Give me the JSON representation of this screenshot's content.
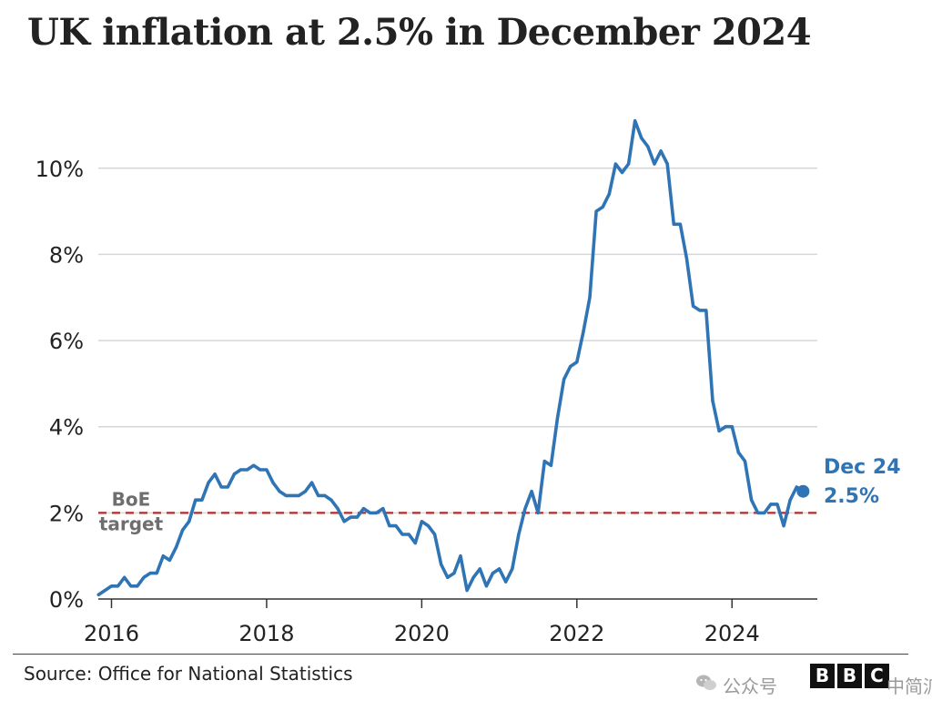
{
  "chart_data": {
    "type": "line",
    "title": "UK inflation at 2.5% in December 2024",
    "xlabel": "",
    "ylabel": "",
    "ylim": [
      0,
      11.2
    ],
    "xlim": [
      2015.83,
      2025.1
    ],
    "yticks": [
      {
        "value": 0,
        "label": "0%"
      },
      {
        "value": 2,
        "label": "2%"
      },
      {
        "value": 4,
        "label": "4%"
      },
      {
        "value": 6,
        "label": "6%"
      },
      {
        "value": 8,
        "label": "8%"
      },
      {
        "value": 10,
        "label": "10%"
      }
    ],
    "xticks": [
      {
        "value": 2016,
        "label": "2016"
      },
      {
        "value": 2018,
        "label": "2018"
      },
      {
        "value": 2020,
        "label": "2020"
      },
      {
        "value": 2022,
        "label": "2022"
      },
      {
        "value": 2024,
        "label": "2024"
      }
    ],
    "grid": true,
    "series": [
      {
        "color": "#2f74b5",
        "x": [
          "2015-11",
          "2015-12",
          "2016-01",
          "2016-02",
          "2016-03",
          "2016-04",
          "2016-05",
          "2016-06",
          "2016-07",
          "2016-08",
          "2016-09",
          "2016-10",
          "2016-11",
          "2016-12",
          "2017-01",
          "2017-02",
          "2017-03",
          "2017-04",
          "2017-05",
          "2017-06",
          "2017-07",
          "2017-08",
          "2017-09",
          "2017-10",
          "2017-11",
          "2017-12",
          "2018-01",
          "2018-02",
          "2018-03",
          "2018-04",
          "2018-05",
          "2018-06",
          "2018-07",
          "2018-08",
          "2018-09",
          "2018-10",
          "2018-11",
          "2018-12",
          "2019-01",
          "2019-02",
          "2019-03",
          "2019-04",
          "2019-05",
          "2019-06",
          "2019-07",
          "2019-08",
          "2019-09",
          "2019-10",
          "2019-11",
          "2019-12",
          "2020-01",
          "2020-02",
          "2020-03",
          "2020-04",
          "2020-05",
          "2020-06",
          "2020-07",
          "2020-08",
          "2020-09",
          "2020-10",
          "2020-11",
          "2020-12",
          "2021-01",
          "2021-02",
          "2021-03",
          "2021-04",
          "2021-05",
          "2021-06",
          "2021-07",
          "2021-08",
          "2021-09",
          "2021-10",
          "2021-11",
          "2021-12",
          "2022-01",
          "2022-02",
          "2022-03",
          "2022-04",
          "2022-05",
          "2022-06",
          "2022-07",
          "2022-08",
          "2022-09",
          "2022-10",
          "2022-11",
          "2022-12",
          "2023-01",
          "2023-02",
          "2023-03",
          "2023-04",
          "2023-05",
          "2023-06",
          "2023-07",
          "2023-08",
          "2023-09",
          "2023-10",
          "2023-11",
          "2023-12",
          "2024-01",
          "2024-02",
          "2024-03",
          "2024-04",
          "2024-05",
          "2024-06",
          "2024-07",
          "2024-08",
          "2024-09",
          "2024-10",
          "2024-11",
          "2024-12"
        ],
        "values": [
          0.1,
          0.2,
          0.3,
          0.3,
          0.5,
          0.3,
          0.3,
          0.5,
          0.6,
          0.6,
          1.0,
          0.9,
          1.2,
          1.6,
          1.8,
          2.3,
          2.3,
          2.7,
          2.9,
          2.6,
          2.6,
          2.9,
          3.0,
          3.0,
          3.1,
          3.0,
          3.0,
          2.7,
          2.5,
          2.4,
          2.4,
          2.4,
          2.5,
          2.7,
          2.4,
          2.4,
          2.3,
          2.1,
          1.8,
          1.9,
          1.9,
          2.1,
          2.0,
          2.0,
          2.1,
          1.7,
          1.7,
          1.5,
          1.5,
          1.3,
          1.8,
          1.7,
          1.5,
          0.8,
          0.5,
          0.6,
          1.0,
          0.2,
          0.5,
          0.7,
          0.3,
          0.6,
          0.7,
          0.4,
          0.7,
          1.5,
          2.1,
          2.5,
          2.0,
          3.2,
          3.1,
          4.2,
          5.1,
          5.4,
          5.5,
          6.2,
          7.0,
          9.0,
          9.1,
          9.4,
          10.1,
          9.9,
          10.1,
          11.1,
          10.7,
          10.5,
          10.1,
          10.4,
          10.1,
          8.7,
          8.7,
          7.9,
          6.8,
          6.7,
          6.7,
          4.6,
          3.9,
          4.0,
          4.0,
          3.4,
          3.2,
          2.3,
          2.0,
          2.0,
          2.2,
          2.2,
          1.7,
          2.3,
          2.6,
          2.5
        ]
      }
    ],
    "reference_line": {
      "value": 2,
      "label_line1": "BoE",
      "label_line2": "target",
      "color": "#b52a2a"
    },
    "end_annotation": {
      "line1": "Dec 24",
      "line2": "2.5%"
    }
  },
  "footer": {
    "source": "Source: Office for National Statistics",
    "watermark": "公众号",
    "watermark_tail": "中简派",
    "logo_letters": [
      "B",
      "B",
      "C"
    ]
  },
  "colors": {
    "line": "#2f74b5",
    "target": "#b52a2a",
    "grid": "#d6d6d6",
    "text": "#222222"
  }
}
